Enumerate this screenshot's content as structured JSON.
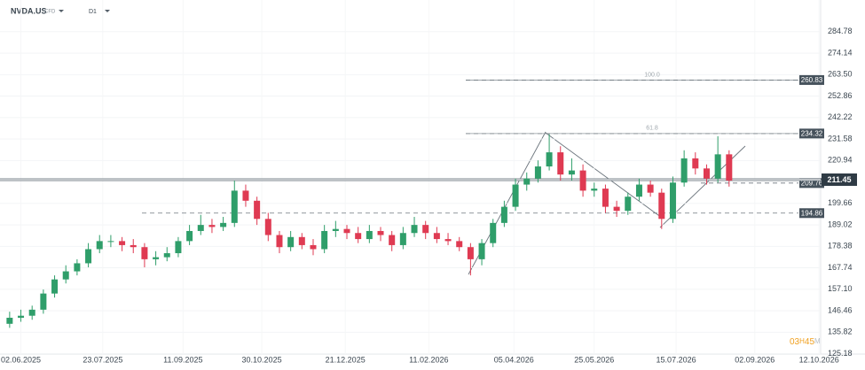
{
  "chart_data": {
    "type": "candlestick",
    "symbol": "NVDA.US",
    "instrument": "CFD",
    "timeframe": "D1",
    "x": [
      "26.05.2025",
      "02.06.2025",
      "09.06.2025",
      "16.06.2025",
      "23.06.2025",
      "30.06.2025",
      "07.07.2025",
      "14.07.2025",
      "21.07.2025",
      "28.07.2025",
      "04.08.2025",
      "11.08.2025",
      "18.08.2025",
      "25.08.2025",
      "01.09.2025",
      "08.09.2025",
      "15.09.2025",
      "22.09.2025",
      "29.09.2025",
      "06.10.2025",
      "13.10.2025",
      "20.10.2025",
      "27.10.2025",
      "03.11.2025",
      "10.11.2025",
      "17.11.2025",
      "24.11.2025",
      "01.12.2025",
      "08.12.2025",
      "15.12.2025",
      "22.12.2025",
      "29.12.2025",
      "05.01.2026",
      "12.01.2026",
      "19.01.2026",
      "26.01.2026",
      "02.02.2026",
      "09.02.2026",
      "16.02.2026",
      "23.02.2026",
      "02.03.2026",
      "09.03.2026",
      "16.03.2026",
      "23.03.2026",
      "30.03.2026",
      "06.04.2026",
      "13.04.2026",
      "20.04.2026",
      "27.04.2026",
      "04.05.2026",
      "11.05.2026",
      "18.05.2026",
      "25.05.2026",
      "01.06.2026",
      "08.06.2026",
      "15.06.2026",
      "22.06.2026",
      "29.06.2026",
      "06.07.2026",
      "13.07.2026",
      "20.07.2026",
      "27.07.2026",
      "03.08.2026",
      "10.08.2026",
      "17.08.2026"
    ],
    "open": [
      140,
      143,
      144,
      147,
      155,
      162,
      166,
      170,
      177,
      181,
      181,
      179,
      178,
      172,
      173,
      175,
      181,
      186,
      189,
      188,
      190,
      206,
      201,
      192,
      184,
      178,
      183,
      179,
      177,
      186,
      187,
      185,
      182,
      186,
      184,
      179,
      185,
      189,
      185,
      182,
      181,
      178,
      172,
      180,
      190,
      198,
      209,
      212,
      218,
      225,
      214,
      216,
      206,
      207,
      198,
      196,
      203,
      209,
      205,
      192,
      210,
      222,
      217,
      212,
      224
    ],
    "high": [
      146,
      147,
      149,
      157,
      164,
      169,
      172,
      180,
      184,
      184,
      183,
      182,
      180,
      176,
      178,
      183,
      189,
      194,
      192,
      193,
      211,
      209,
      203,
      195,
      186,
      186,
      185,
      182,
      189,
      191,
      189,
      188,
      189,
      188,
      186,
      188,
      193,
      191,
      188,
      185,
      183,
      180,
      182,
      192,
      201,
      212,
      215,
      221,
      234,
      228,
      222,
      219,
      210,
      209,
      201,
      205,
      212,
      211,
      207,
      213,
      226,
      225,
      219,
      233,
      226
    ],
    "low": [
      138,
      141,
      142,
      145,
      153,
      160,
      164,
      168,
      175,
      178,
      176,
      175,
      168,
      169,
      171,
      173,
      179,
      184,
      185,
      186,
      188,
      198,
      189,
      181,
      175,
      176,
      177,
      174,
      175,
      183,
      182,
      180,
      180,
      181,
      176,
      177,
      183,
      182,
      180,
      179,
      176,
      164,
      169,
      178,
      188,
      196,
      206,
      210,
      216,
      211,
      211,
      203,
      203,
      195,
      193,
      194,
      201,
      203,
      187,
      190,
      208,
      214,
      209,
      210,
      208
    ],
    "close": [
      143,
      144,
      147,
      155,
      162,
      166,
      170,
      177,
      181,
      181,
      179,
      178,
      172,
      173,
      175,
      181,
      186,
      189,
      188,
      190,
      206,
      201,
      192,
      184,
      178,
      183,
      179,
      177,
      186,
      187,
      185,
      182,
      186,
      184,
      179,
      185,
      189,
      185,
      182,
      181,
      178,
      172,
      180,
      190,
      198,
      209,
      212,
      218,
      225,
      214,
      216,
      206,
      207,
      198,
      196,
      203,
      209,
      205,
      192,
      210,
      222,
      217,
      212,
      224,
      211
    ],
    "up_color": "#2f9e6a",
    "down_color": "#df3a52",
    "xlim": [
      "20.05.2025",
      "13.10.2026"
    ],
    "xticks": [
      "02.06.2025",
      "23.07.2025",
      "11.09.2025",
      "30.10.2025",
      "21.12.2025",
      "11.02.2026",
      "05.04.2026",
      "25.05.2026",
      "15.07.2026",
      "02.09.2026",
      "12.10.2026"
    ],
    "ylim": [
      125,
      300.5
    ],
    "yticks": [
      284.78,
      274.14,
      {
        "value": 263.5,
        "label": "263.50"
      },
      252.86,
      242.22,
      231.58,
      220.94,
      199.66,
      189.02,
      178.38,
      167.74,
      {
        "value": 157.1,
        "label": "157.10"
      },
      146.46,
      135.82,
      125.18
    ],
    "grid": true,
    "price_lines": [
      260.83,
      234.32,
      209.76,
      194.86
    ],
    "fib_levels": [
      {
        "label": "100.0",
        "value": 260.83
      },
      {
        "label": "61.8",
        "value": 234.32
      }
    ],
    "last_price": 211.45,
    "countdown": {
      "hours": "03",
      "hours_unit": "H",
      "minutes": "45",
      "minutes_unit": "M"
    }
  }
}
